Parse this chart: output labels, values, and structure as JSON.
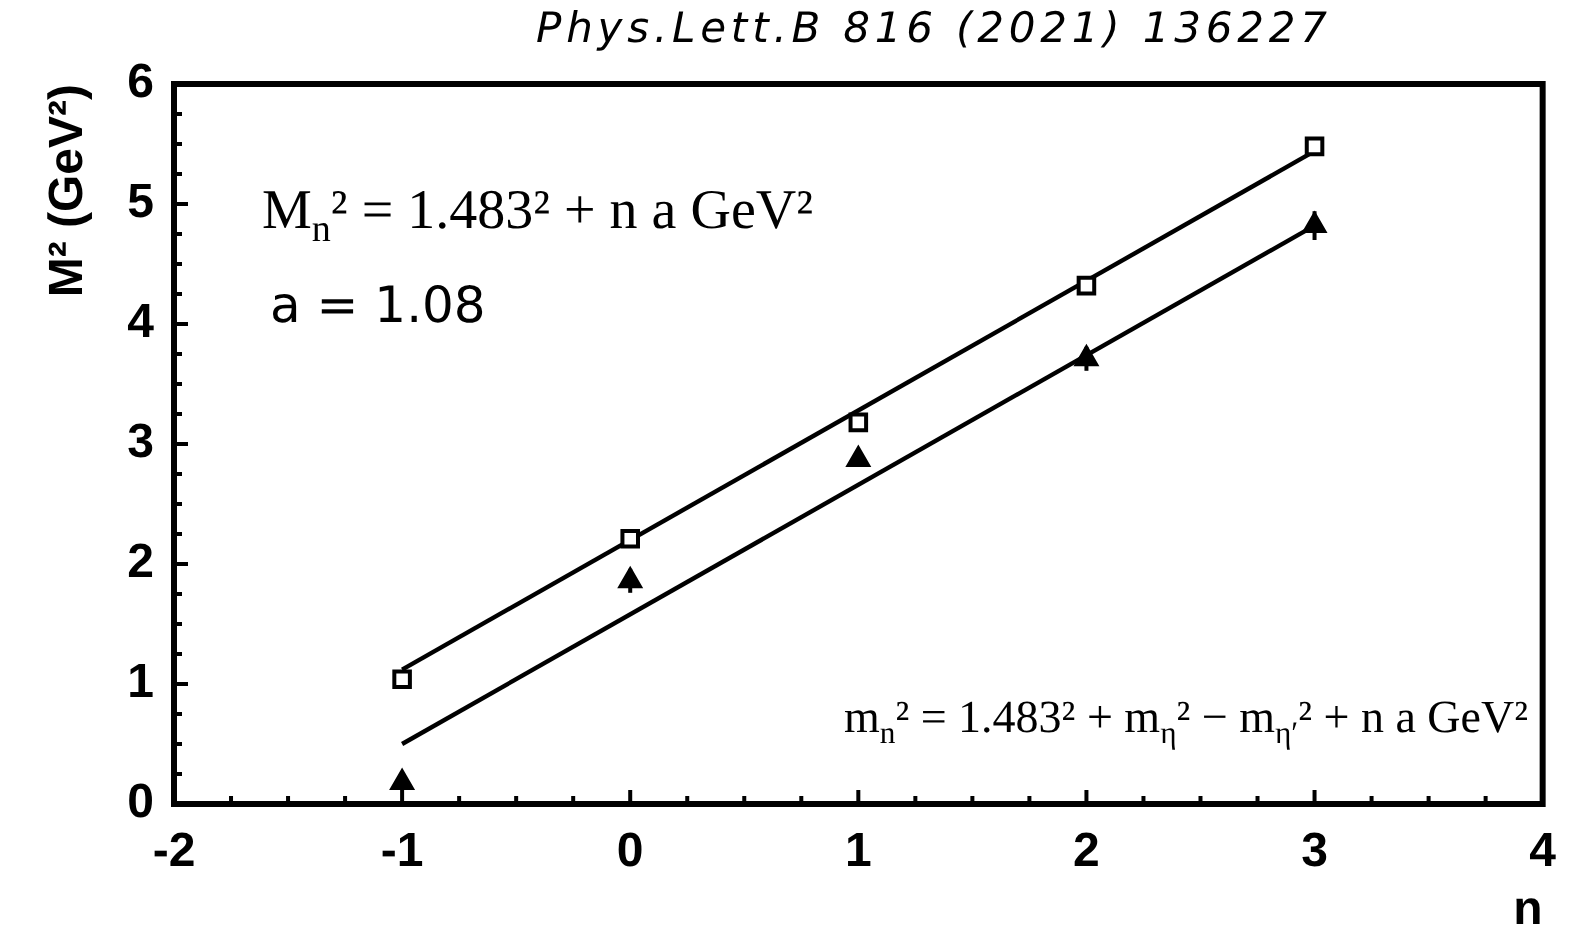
{
  "chart_data": {
    "type": "scatter",
    "annotations": [
      "Phys.Lett.B 816 (2021) 136227",
      "M$_{n}$² = 1.483² + n a GeV²",
      "a = 1.08",
      "m$_{n}$² = 1.483² + m$_{η}$² − m$_{η′}$² + n a GeV²"
    ],
    "xlabel": "n",
    "ylabel": "M² (GeV²)",
    "xlim": [
      -2,
      4
    ],
    "ylim": [
      0,
      6
    ],
    "xticks": [
      -2,
      {
        "value": -1.75,
        "label": null
      },
      {
        "value": -1.5,
        "label": null
      },
      {
        "value": -1.25,
        "label": null
      },
      -1,
      {
        "value": -0.75,
        "label": null
      },
      {
        "value": -0.5,
        "label": null
      },
      {
        "value": -0.25,
        "label": null
      },
      0,
      {
        "value": 0.25,
        "label": null
      },
      {
        "value": 0.5,
        "label": null
      },
      {
        "value": 0.75,
        "label": null
      },
      1,
      {
        "value": 1.25,
        "label": null
      },
      {
        "value": 1.5,
        "label": null
      },
      {
        "value": 1.75,
        "label": null
      },
      2,
      {
        "value": 2.25,
        "label": null
      },
      {
        "value": 2.5,
        "label": null
      },
      {
        "value": 2.75,
        "label": null
      },
      3,
      {
        "value": 3.25,
        "label": null
      },
      {
        "value": 3.5,
        "label": null
      },
      {
        "value": 3.75,
        "label": null
      },
      4
    ],
    "yticks": [
      0,
      {
        "value": 0.25,
        "label": null
      },
      {
        "value": 0.5,
        "label": null
      },
      {
        "value": 0.75,
        "label": null
      },
      1,
      {
        "value": 1.25,
        "label": null
      },
      {
        "value": 1.5,
        "label": null
      },
      {
        "value": 1.75,
        "label": null
      },
      2,
      {
        "value": 2.25,
        "label": null
      },
      {
        "value": 2.5,
        "label": null
      },
      {
        "value": 2.75,
        "label": null
      },
      3,
      {
        "value": 3.25,
        "label": null
      },
      {
        "value": 3.5,
        "label": null
      },
      {
        "value": 3.75,
        "label": null
      },
      4,
      {
        "value": 4.25,
        "label": null
      },
      {
        "value": 4.5,
        "label": null
      },
      {
        "value": 4.75,
        "label": null
      },
      5,
      {
        "value": 5.25,
        "label": null
      },
      {
        "value": 5.5,
        "label": null
      },
      {
        "value": 5.75,
        "label": null
      },
      6
    ],
    "grid": false,
    "series": [
      {
        "type": "scatter",
        "color": "#000000",
        "marker": "square",
        "x": [
          -1,
          0,
          1,
          2,
          3
        ],
        "values": [
          1.04,
          2.21,
          3.18,
          4.32,
          5.48
        ]
      },
      {
        "type": "scatter",
        "color": "#000000",
        "marker": "triangle",
        "x": [
          -1,
          0,
          1,
          2,
          3
        ],
        "values": [
          0.18,
          1.86,
          2.87,
          3.71,
          4.82
        ],
        "errors": [
          null,
          0.1,
          null,
          0.1,
          0.12
        ]
      },
      {
        "type": "line",
        "color": "#000000",
        "marker": "none",
        "line_style": "solid",
        "x": [
          -1,
          3
        ],
        "values": [
          1.12,
          5.44
        ]
      },
      {
        "type": "line",
        "color": "#000000",
        "marker": "none",
        "line_style": "solid",
        "x": [
          -1,
          3
        ],
        "values": [
          0.5,
          4.82
        ]
      }
    ]
  }
}
